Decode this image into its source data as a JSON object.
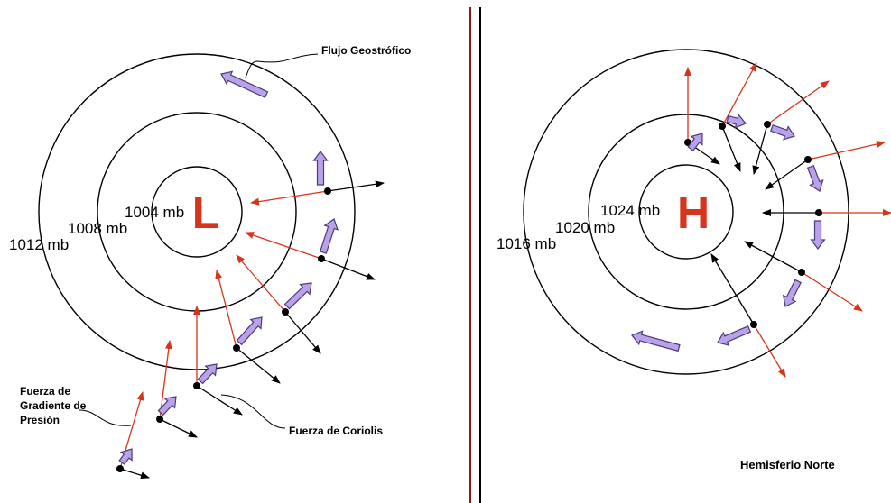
{
  "low": {
    "symbol": "L",
    "isobars": [
      "1004 mb",
      "1008 mb",
      "1012 mb"
    ]
  },
  "high": {
    "symbol": "H",
    "isobars": [
      "1024 mb",
      "1020 mb",
      "1016 mb"
    ]
  },
  "annotations": {
    "geostrophic": "Flujo Geostrófico",
    "pressure_gradient": [
      "Fuerza de",
      "Gradiente de",
      "Presión"
    ],
    "coriolis": "Fuerza de Coriolis",
    "hemisphere": "Hemisferio Norte"
  }
}
